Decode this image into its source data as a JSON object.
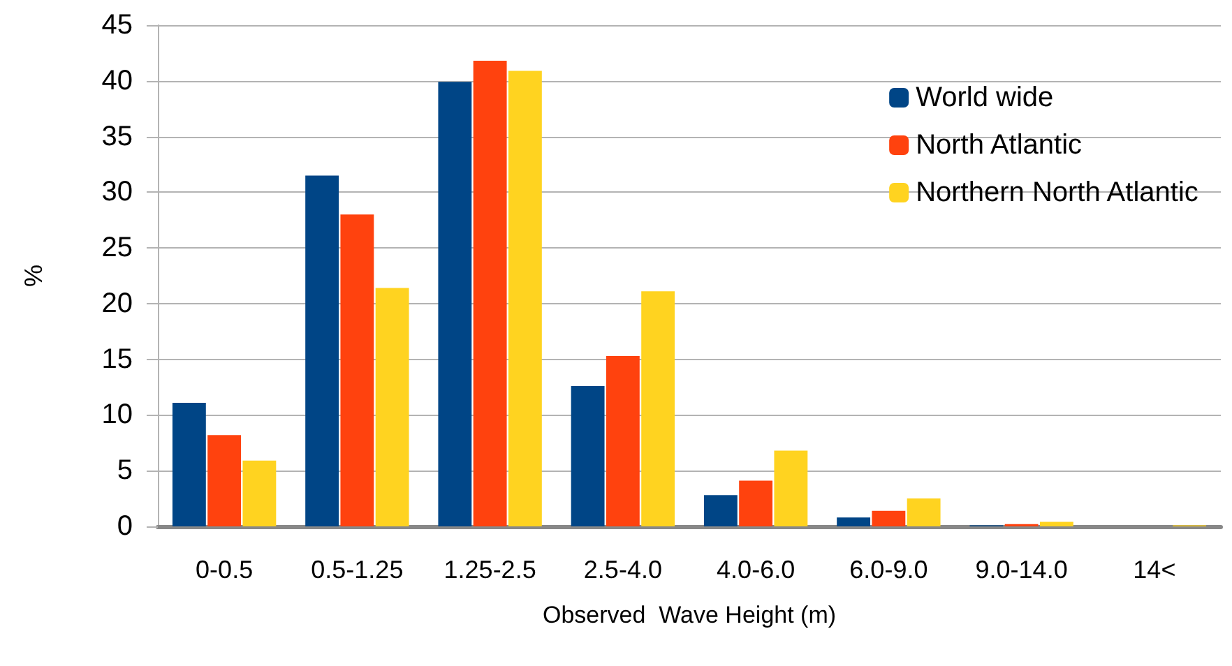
{
  "chart_data": {
    "type": "bar",
    "xlabel": "Observed  Wave Height (m)",
    "ylabel": "%",
    "categories": [
      "0-0.5",
      "0.5-1.25",
      "1.25-2.5",
      "2.5-4.0",
      "4.0-6.0",
      "6.0-9.0",
      "9.0-14.0",
      "14<"
    ],
    "series": [
      {
        "name": "World wide",
        "color": "#004586",
        "values": [
          11.1,
          31.5,
          39.9,
          12.6,
          2.8,
          0.8,
          0.1,
          0
        ]
      },
      {
        "name": "North Atlantic",
        "color": "#ff420e",
        "values": [
          8.2,
          28.0,
          41.8,
          15.3,
          4.1,
          1.4,
          0.2,
          0
        ]
      },
      {
        "name": "Northern North Atlantic",
        "color": "#ffd320",
        "values": [
          5.9,
          21.4,
          40.9,
          21.1,
          6.8,
          2.5,
          0.4,
          0.1
        ]
      }
    ],
    "ylim": [
      0,
      45
    ],
    "yticks": [
      0,
      5,
      10,
      15,
      20,
      25,
      30,
      35,
      40,
      45
    ],
    "grid": "y",
    "legend": "top right"
  }
}
